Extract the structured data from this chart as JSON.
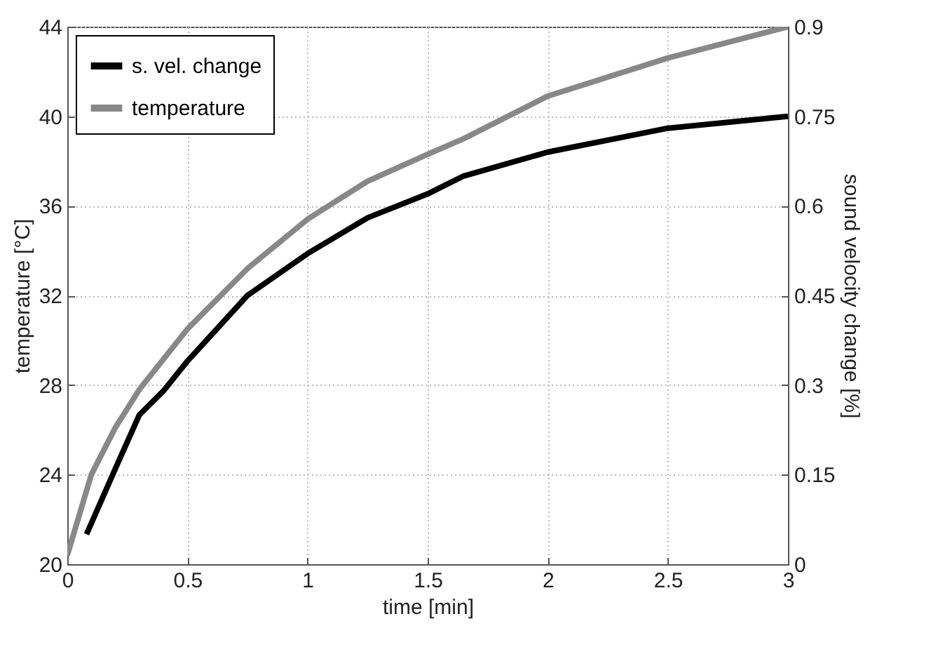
{
  "chart_data": {
    "type": "line",
    "xlabel": "time [min]",
    "ylabel": "temperature [°C]",
    "y2label": "sound velocity change [%]",
    "xlim": [
      0,
      3
    ],
    "xticks": [
      0,
      0.5,
      1,
      1.5,
      2,
      2.5,
      3
    ],
    "ylim": [
      20,
      44
    ],
    "yticks": [
      20,
      24,
      28,
      32,
      36,
      40,
      44
    ],
    "y2lim": [
      0,
      0.9
    ],
    "y2ticks": [
      0,
      0.15,
      0.3,
      0.45,
      0.6,
      0.75,
      0.9
    ],
    "grid": true,
    "legend": "top left",
    "line_style": "solid",
    "series": [
      {
        "name": "s. vel. change",
        "color": "#000000",
        "axis": "y2",
        "x": [
          0.08,
          0.2,
          0.3,
          0.4,
          0.5,
          0.75,
          1,
          1.25,
          1.5,
          1.65,
          2,
          2.5,
          2.75,
          3
        ],
        "values": [
          0.05,
          0.16,
          0.25,
          0.29,
          0.34,
          0.45,
          0.52,
          0.58,
          0.62,
          0.65,
          0.69,
          0.73,
          0.74,
          0.75
        ]
      },
      {
        "name": "temperature",
        "color": "#888888",
        "x": [
          0,
          0.1,
          0.2,
          0.3,
          0.5,
          0.75,
          1,
          1.25,
          1.5,
          1.65,
          2,
          2.5,
          3
        ],
        "values": [
          20.4,
          24.0,
          26.1,
          27.8,
          30.5,
          33.2,
          35.4,
          37.1,
          38.3,
          39.0,
          40.9,
          42.6,
          44.0
        ]
      }
    ]
  }
}
